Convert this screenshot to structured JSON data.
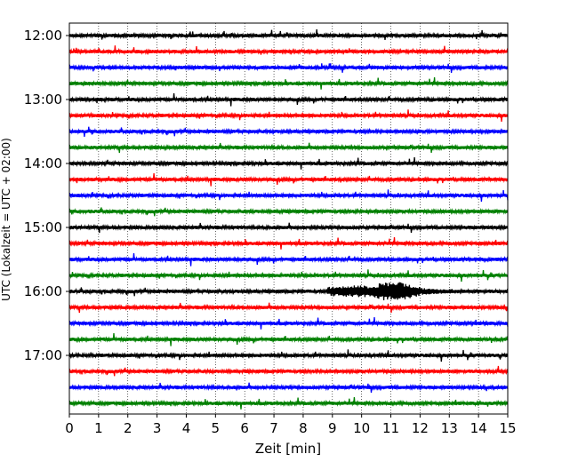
{
  "chart_data": {
    "type": "line",
    "title": "",
    "xlabel": "Zeit  [min]",
    "ylabel": "UTC (Lokalzeit = UTC + 02:00)",
    "xlim": [
      0,
      15
    ],
    "x_ticks": [
      0,
      1,
      2,
      3,
      4,
      5,
      6,
      7,
      8,
      9,
      10,
      11,
      12,
      13,
      14,
      15
    ],
    "y_tick_labels": [
      "12:00",
      "13:00",
      "14:00",
      "15:00",
      "16:00",
      "17:00"
    ],
    "grid": "vertical dotted at every minute",
    "trace_interval_min": 15,
    "trace_colors": [
      "#000000",
      "#ff0000",
      "#0000ff",
      "#008000"
    ],
    "traces": [
      {
        "start": "12:00",
        "color": "#000000"
      },
      {
        "start": "12:15",
        "color": "#ff0000"
      },
      {
        "start": "12:30",
        "color": "#0000ff"
      },
      {
        "start": "12:45",
        "color": "#008000"
      },
      {
        "start": "13:00",
        "color": "#000000"
      },
      {
        "start": "13:15",
        "color": "#ff0000"
      },
      {
        "start": "13:30",
        "color": "#0000ff"
      },
      {
        "start": "13:45",
        "color": "#008000"
      },
      {
        "start": "14:00",
        "color": "#000000"
      },
      {
        "start": "14:15",
        "color": "#ff0000"
      },
      {
        "start": "14:30",
        "color": "#0000ff"
      },
      {
        "start": "14:45",
        "color": "#008000"
      },
      {
        "start": "15:00",
        "color": "#000000"
      },
      {
        "start": "15:15",
        "color": "#ff0000"
      },
      {
        "start": "15:30",
        "color": "#0000ff"
      },
      {
        "start": "15:45",
        "color": "#008000"
      },
      {
        "start": "16:00",
        "color": "#000000"
      },
      {
        "start": "16:15",
        "color": "#ff0000"
      },
      {
        "start": "16:30",
        "color": "#0000ff"
      },
      {
        "start": "16:45",
        "color": "#008000"
      },
      {
        "start": "17:00",
        "color": "#000000"
      },
      {
        "start": "17:15",
        "color": "#ff0000"
      },
      {
        "start": "17:30",
        "color": "#0000ff"
      },
      {
        "start": "17:45",
        "color": "#008000"
      }
    ],
    "events": [
      {
        "trace": 16,
        "x_start": 8.8,
        "x_end": 13.2,
        "peak_min": 10.2,
        "note": "largest burst"
      },
      {
        "trace": 16,
        "x_start": 10.5,
        "x_end": 12.0,
        "peak_min": 11.2
      }
    ]
  }
}
